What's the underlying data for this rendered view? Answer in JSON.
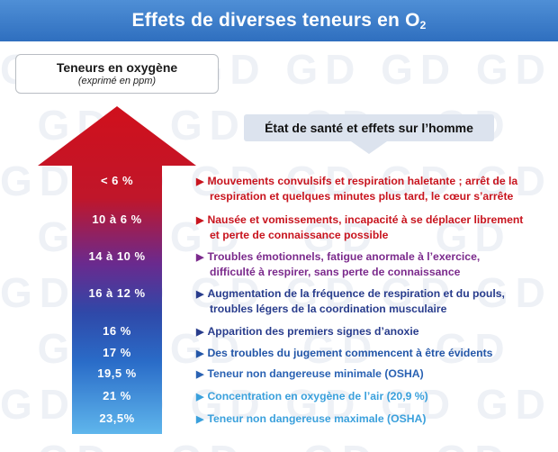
{
  "title": {
    "main": "Effets de diverses teneurs en O",
    "sub": "2"
  },
  "watermark": "GD",
  "oxygen_box": {
    "title": "Teneurs en oxygène",
    "subtitle": "(exprimé en ppm)"
  },
  "state_header": "État de santé et effets sur l’homme",
  "levels": [
    {
      "label": "< 6 %"
    },
    {
      "label": "10 à 6 %"
    },
    {
      "label": "14 à 10 %"
    },
    {
      "label": "16 à 12 %"
    },
    {
      "label": "16 %"
    },
    {
      "label": "17 %"
    },
    {
      "label": "19,5 %"
    },
    {
      "label": "21 %"
    },
    {
      "label": "23,5%"
    }
  ],
  "effects": [
    {
      "line1": "Mouvements convulsifs et respiration haletante ; arrêt de la",
      "line2": "respiration et quelques minutes plus tard, le cœur s’arrête",
      "color": "#c8141e"
    },
    {
      "line1": "Nausée et vomissements, incapacité à se déplacer librement",
      "line2": "et perte de connaissance possible",
      "color": "#c8141e"
    },
    {
      "line1": "Troubles émotionnels, fatigue anormale à l’exercice,",
      "line2": "difficulté à respirer, sans perte de connaissance",
      "color": "#7b2a8c"
    },
    {
      "line1": "Augmentation de la fréquence de respiration et du pouls,",
      "line2": "troubles légers de la coordination musculaire",
      "color": "#283c8c"
    },
    {
      "line1": "Apparition des premiers signes d’anoxie",
      "line2": "",
      "color": "#283c8c"
    },
    {
      "line1": "Des troubles du jugement commencent à être évidents",
      "line2": "",
      "color": "#2356a8"
    },
    {
      "line1": "Teneur non dangereuse minimale (OSHA)",
      "line2": "",
      "color": "#2a62b3"
    },
    {
      "line1": "Concentration en oxygène de l’air (20,9 %)",
      "line2": "",
      "color": "#3aa0dc"
    },
    {
      "line1": "Teneur non dangereuse maximale (OSHA)",
      "line2": "",
      "color": "#3aa0dc"
    }
  ],
  "colors": {
    "title_bar": "#3a7cca",
    "arrow_top": "#d0101c",
    "arrow_mid": "#6a2a8e",
    "arrow_lower": "#2f48a8",
    "arrow_bottom": "#5fb6ec",
    "state_box": "#dce3ee"
  },
  "icons": {
    "effect_marker": "triangle-right-icon",
    "state_pointer": "triangle-down-icon"
  }
}
